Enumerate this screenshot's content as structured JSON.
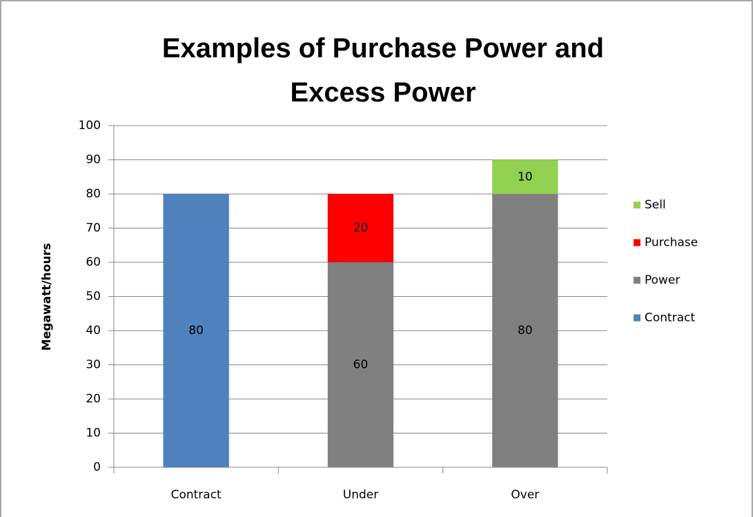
{
  "chart_data": {
    "type": "stacked_bar",
    "title": "Examples of Purchase Power and Excess Power",
    "y_label": "Megawatt/hours",
    "categories": [
      "Contract",
      "Under",
      "Over"
    ],
    "series": [
      {
        "name": "Contract",
        "color": "#4f81bd",
        "values": [
          80,
          null,
          null
        ]
      },
      {
        "name": "Power",
        "color": "#808080",
        "values": [
          null,
          60,
          80
        ]
      },
      {
        "name": "Purchase",
        "color": "#ff0000",
        "values": [
          null,
          20,
          null
        ]
      },
      {
        "name": "Sell",
        "color": "#92d050",
        "values": [
          null,
          null,
          10
        ]
      }
    ],
    "ylim": [
      0,
      100
    ],
    "yticks": [
      0,
      10,
      20,
      30,
      40,
      50,
      60,
      70,
      80,
      90,
      100
    ],
    "grid": true,
    "legend": "right"
  }
}
